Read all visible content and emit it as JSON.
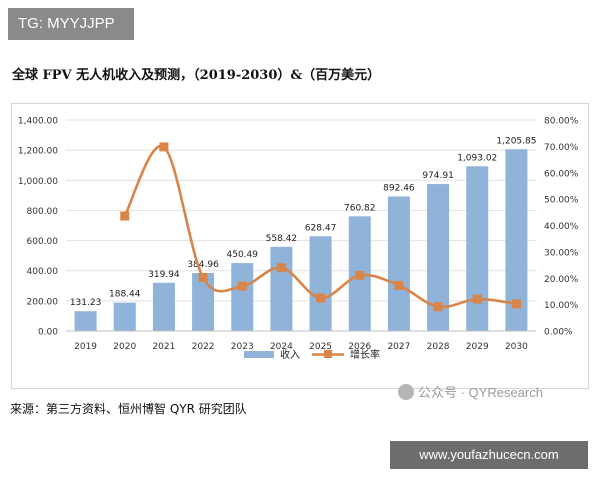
{
  "header": {
    "badge": "TG: MYYJJPP"
  },
  "chart_data": {
    "type": "bar",
    "title": "全球 FPV 无人机收入及预测，（2019-2030）&（百万美元）",
    "categories": [
      "2019",
      "2020",
      "2021",
      "2022",
      "2023",
      "2024",
      "2025",
      "2026",
      "2027",
      "2028",
      "2029",
      "2030"
    ],
    "series": [
      {
        "name": "收入",
        "type": "bar",
        "axis": "left",
        "color": "#8fb3d9",
        "values": [
          131.23,
          188.44,
          319.94,
          384.96,
          450.49,
          558.42,
          628.47,
          760.82,
          892.46,
          974.91,
          1093.02,
          1205.85
        ],
        "labels": [
          "131.23",
          "188.44",
          "319.94",
          "384.96",
          "450.49",
          "558.42",
          "628.47",
          "760.82",
          "892.46",
          "974.91",
          "1,093.02",
          "1,205.85"
        ]
      },
      {
        "name": "增长率",
        "type": "line",
        "axis": "right",
        "color": "#d9854a",
        "values": [
          null,
          43.6,
          69.8,
          20.3,
          17.0,
          24.0,
          12.5,
          21.1,
          17.3,
          9.2,
          12.1,
          10.3
        ]
      }
    ],
    "y_left": {
      "ylim": [
        0,
        1400
      ],
      "ticks": [
        0,
        200,
        400,
        600,
        800,
        1000,
        1200,
        1400
      ],
      "tick_labels": [
        "0.00",
        "200.00",
        "400.00",
        "600.00",
        "800.00",
        "1,000.00",
        "1,200.00",
        "1,400.00"
      ]
    },
    "y_right": {
      "ylim": [
        0,
        80
      ],
      "ticks": [
        0,
        10,
        20,
        30,
        40,
        50,
        60,
        70,
        80
      ],
      "tick_labels": [
        "0.00%",
        "10.00%",
        "20.00%",
        "30.00%",
        "40.00%",
        "50.00%",
        "60.00%",
        "70.00%",
        "80.00%"
      ]
    },
    "grid": true,
    "legend": {
      "position": "bottom",
      "entries": [
        "收入",
        "增长率"
      ]
    }
  },
  "footer": {
    "watermark": "公众号 · QYResearch",
    "source": "来源：第三方资料、恒州博智 QYR 研究团队",
    "site": "www.youfazhucecn.com"
  }
}
